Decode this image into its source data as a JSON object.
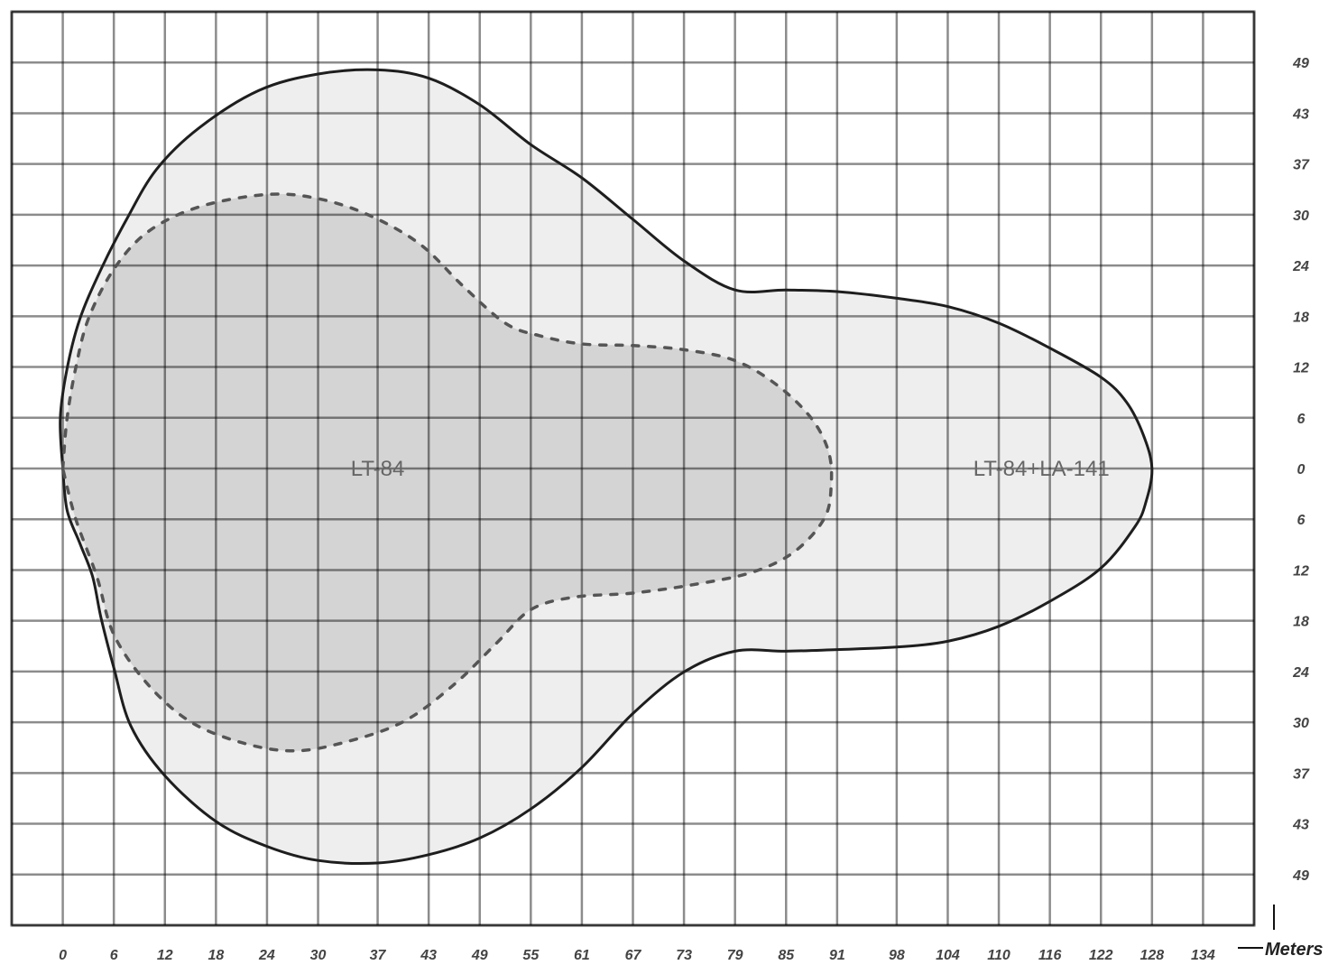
{
  "chart_data": {
    "type": "area",
    "unit_label": "Meters",
    "x_ticks": [
      "0",
      "6",
      "12",
      "18",
      "24",
      "30",
      "37",
      "43",
      "49",
      "55",
      "61",
      "67",
      "73",
      "79",
      "85",
      "91",
      "98",
      "104",
      "110",
      "116",
      "122",
      "128",
      "134"
    ],
    "y_ticks": [
      "49",
      "43",
      "37",
      "30",
      "24",
      "18",
      "12",
      "6",
      "0",
      "6",
      "12",
      "18",
      "24",
      "30",
      "37",
      "43",
      "49"
    ],
    "xlim": [
      -6,
      140
    ],
    "ylim": [
      -55,
      55
    ],
    "grid": true,
    "series": [
      {
        "name": "LT-84+LA-141",
        "style": "solid",
        "fill": "#eeeeee",
        "boundary": [
          [
            0,
            0
          ],
          [
            -0.3,
            6
          ],
          [
            0.5,
            12
          ],
          [
            2,
            18
          ],
          [
            4.5,
            24
          ],
          [
            7.5,
            30
          ],
          [
            11,
            36
          ],
          [
            16,
            41
          ],
          [
            23,
            45.5
          ],
          [
            30,
            47.5
          ],
          [
            37,
            48
          ],
          [
            43,
            47
          ],
          [
            49,
            43.8
          ],
          [
            55,
            39
          ],
          [
            61,
            35
          ],
          [
            67,
            30
          ],
          [
            73,
            25
          ],
          [
            79,
            21.5
          ],
          [
            85,
            21.5
          ],
          [
            91,
            21.3
          ],
          [
            98,
            20.5
          ],
          [
            104,
            19.5
          ],
          [
            110,
            17.5
          ],
          [
            116,
            14.5
          ],
          [
            122,
            11
          ],
          [
            125,
            8
          ],
          [
            127,
            4
          ],
          [
            128,
            0
          ],
          [
            127.3,
            -4
          ],
          [
            126,
            -7
          ],
          [
            122,
            -12
          ],
          [
            116,
            -16
          ],
          [
            110,
            -19
          ],
          [
            104,
            -20.8
          ],
          [
            98,
            -21.5
          ],
          [
            91,
            -21.8
          ],
          [
            85,
            -22
          ],
          [
            79,
            -22
          ],
          [
            73,
            -24.5
          ],
          [
            67,
            -29.5
          ],
          [
            61,
            -36
          ],
          [
            55,
            -41
          ],
          [
            49,
            -44.5
          ],
          [
            43,
            -46.5
          ],
          [
            37,
            -47.5
          ],
          [
            30,
            -47.2
          ],
          [
            24,
            -45.5
          ],
          [
            18,
            -42.5
          ],
          [
            12,
            -37
          ],
          [
            8,
            -31
          ],
          [
            6,
            -24
          ],
          [
            4.5,
            -18
          ],
          [
            3.5,
            -13
          ],
          [
            2,
            -9
          ],
          [
            0.5,
            -5
          ],
          [
            0,
            0
          ]
        ]
      },
      {
        "name": "LT-84",
        "style": "dashed",
        "fill": "#d4d4d4",
        "boundary": [
          [
            0,
            0
          ],
          [
            0.5,
            6
          ],
          [
            1.5,
            12
          ],
          [
            3,
            18
          ],
          [
            6,
            24
          ],
          [
            10,
            28.5
          ],
          [
            16,
            31.5
          ],
          [
            24,
            33
          ],
          [
            30,
            32.5
          ],
          [
            36,
            30.5
          ],
          [
            42,
            27
          ],
          [
            47,
            22
          ],
          [
            52,
            17.5
          ],
          [
            56,
            16
          ],
          [
            61,
            15
          ],
          [
            67,
            14.8
          ],
          [
            73,
            14.3
          ],
          [
            79,
            13
          ],
          [
            84,
            10
          ],
          [
            88,
            6
          ],
          [
            90,
            2
          ],
          [
            90.3,
            -2
          ],
          [
            89.5,
            -6
          ],
          [
            86,
            -10
          ],
          [
            81,
            -12.5
          ],
          [
            74,
            -14
          ],
          [
            67,
            -15
          ],
          [
            60,
            -15.5
          ],
          [
            55,
            -17
          ],
          [
            51,
            -21
          ],
          [
            46,
            -26
          ],
          [
            40,
            -30.5
          ],
          [
            33,
            -33
          ],
          [
            27,
            -34
          ],
          [
            21,
            -33
          ],
          [
            15,
            -30.5
          ],
          [
            10,
            -26
          ],
          [
            6,
            -20
          ],
          [
            4,
            -13
          ],
          [
            1.5,
            -6
          ],
          [
            0,
            0
          ]
        ]
      }
    ]
  }
}
